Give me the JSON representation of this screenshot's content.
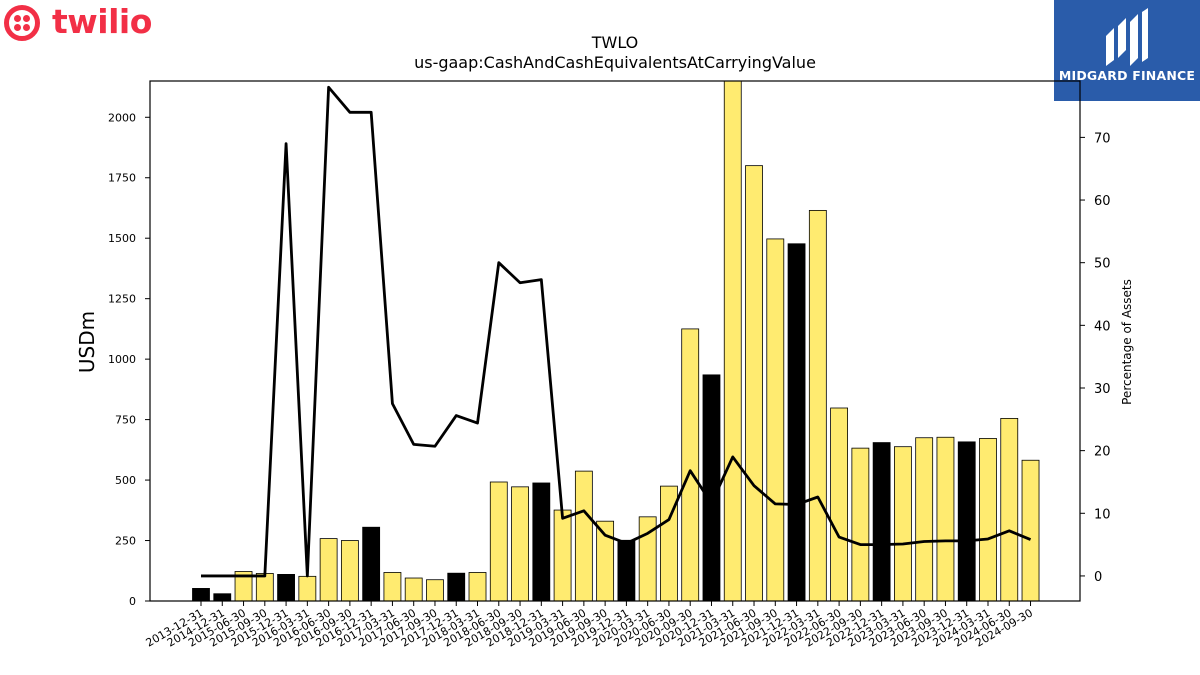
{
  "logos": {
    "left_brand": "twilio",
    "right_brand": "MIDGARD FINANCE",
    "left_color": "#f22f46",
    "right_bg": "#2a5caa"
  },
  "chart_data": {
    "type": "bar",
    "title": "TWLO",
    "subtitle": "us-gaap:CashAndCashEquivalentsAtCarryingValue",
    "ylabel": "USDm",
    "y2label": "Percentage of Assets",
    "ylim": [
      0,
      2150
    ],
    "y2lim": [
      -4,
      79
    ],
    "yticks": [
      0,
      250,
      500,
      750,
      1000,
      1250,
      1500,
      1750,
      2000
    ],
    "y2ticks": [
      0,
      10,
      20,
      30,
      40,
      50,
      60,
      70
    ],
    "colors": {
      "annual": "#000000",
      "quarterly": "#ffeb70",
      "line": "#000000"
    },
    "categories": [
      "2013-12-31",
      "2014-12-31",
      "2015-06-30",
      "2015-09-30",
      "2015-12-31",
      "2016-03-31",
      "2016-06-30",
      "2016-09-30",
      "2016-12-31",
      "2017-03-31",
      "2017-06-30",
      "2017-09-30",
      "2017-12-31",
      "2018-03-31",
      "2018-06-30",
      "2018-09-30",
      "2018-12-31",
      "2019-03-31",
      "2019-06-30",
      "2019-09-30",
      "2019-12-31",
      "2020-03-31",
      "2020-06-30",
      "2020-09-30",
      "2020-12-31",
      "2021-03-31",
      "2021-06-30",
      "2021-09-30",
      "2021-12-31",
      "2022-03-31",
      "2022-06-30",
      "2022-09-30",
      "2022-12-31",
      "2023-03-31",
      "2023-06-30",
      "2023-09-30",
      "2023-12-31",
      "2024-03-31",
      "2024-06-30",
      "2024-09-30"
    ],
    "series": [
      {
        "name": "",
        "axis": "left",
        "values": [
          52,
          30,
          122,
          114,
          110,
          102,
          258,
          250,
          305,
          118,
          95,
          88,
          115,
          118,
          492,
          472,
          488,
          376,
          537,
          330,
          251,
          348,
          475,
          1125,
          935,
          2160,
          1800,
          1497,
          1477,
          1615,
          798,
          632,
          655,
          638,
          675,
          677,
          658,
          672,
          755,
          582
        ],
        "annual_flags": [
          1,
          1,
          0,
          0,
          1,
          0,
          0,
          0,
          1,
          0,
          0,
          0,
          1,
          0,
          0,
          0,
          1,
          0,
          0,
          0,
          1,
          0,
          0,
          0,
          1,
          0,
          0,
          0,
          1,
          0,
          0,
          0,
          1,
          0,
          0,
          0,
          1,
          0,
          0,
          0
        ]
      },
      {
        "name": "",
        "axis": "right",
        "type": "line",
        "values": [
          0,
          0,
          0,
          0,
          69,
          0,
          78,
          74,
          74,
          27.5,
          21,
          20.7,
          25.6,
          24.4,
          50,
          46.8,
          47.3,
          9.2,
          10.4,
          6.5,
          5.2,
          6.8,
          9,
          16.8,
          11.6,
          19,
          14.4,
          11.5,
          11.4,
          12.6,
          6.2,
          5,
          5,
          5.1,
          5.5,
          5.6,
          5.6,
          5.9,
          7.2,
          5.8
        ]
      }
    ]
  }
}
